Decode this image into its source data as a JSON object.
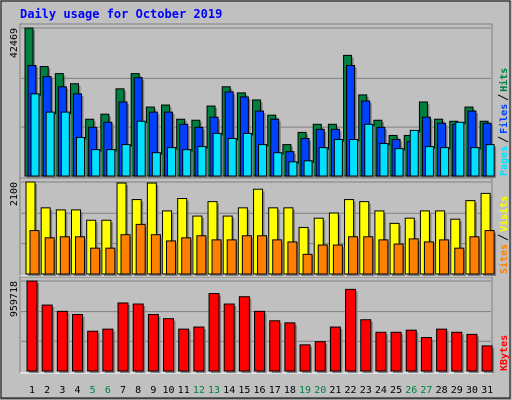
{
  "chart_data": [
    {
      "type": "bar",
      "title": "Daily usage for October 2019",
      "ylim": [
        0,
        42469
      ],
      "yticks": [
        42469
      ],
      "series": [
        {
          "name": "Hits",
          "color": "#008040",
          "values": [
            42469,
            31416,
            29380,
            26470,
            16290,
            17745,
            25017,
            29380,
            19781,
            20363,
            16290,
            16000,
            20072,
            25600,
            23854,
            21818,
            17454,
            9018,
            12509,
            14836,
            14836,
            34618,
            23272,
            16000,
            11636,
            11636,
            21236,
            16290,
            15709,
            19781,
            15709
          ]
        },
        {
          "name": "Files",
          "color": "#0040ff",
          "values": [
            31708,
            28509,
            25600,
            23563,
            13963,
            15418,
            21236,
            28218,
            18327,
            18327,
            14836,
            13963,
            16872,
            24145,
            22690,
            18618,
            16290,
            6982,
            10763,
            13382,
            13382,
            31708,
            21527,
            13963,
            10472,
            9890,
            16872,
            15127,
            14836,
            18618,
            15127
          ]
        },
        {
          "name": "Pages",
          "color": "#00e0ff",
          "values": [
            23563,
            18327,
            18327,
            11054,
            7563,
            7563,
            9018,
            15709,
            6691,
            8145,
            7563,
            8436,
            12218,
            10763,
            12218,
            9018,
            6691,
            4073,
            4364,
            8145,
            10472,
            10472,
            14836,
            9309,
            7854,
            13091,
            8436,
            8145,
            15418,
            8145,
            9018
          ]
        }
      ]
    },
    {
      "type": "bar",
      "ylim": [
        0,
        2100
      ],
      "yticks": [
        2100
      ],
      "series": [
        {
          "name": "Visits",
          "color": "#ffff00",
          "values": [
            2100,
            1510,
            1463,
            1463,
            1227,
            1227,
            2076,
            1699,
            2076,
            1440,
            1723,
            1322,
            1652,
            1322,
            1510,
            1935,
            1510,
            1510,
            1062,
            1274,
            1392,
            1699,
            1652,
            1440,
            1156,
            1274,
            1440,
            1440,
            1251,
            1675,
            1840
          ]
        },
        {
          "name": "Sites",
          "color": "#ff8000",
          "values": [
            991,
            826,
            850,
            850,
            590,
            590,
            897,
            1133,
            897,
            755,
            826,
            873,
            779,
            779,
            873,
            873,
            779,
            732,
            448,
            661,
            661,
            850,
            850,
            779,
            684,
            802,
            732,
            779,
            590,
            850,
            991
          ]
        }
      ]
    },
    {
      "type": "bar",
      "ylim": [
        0,
        959718
      ],
      "yticks": [
        959718
      ],
      "categories": [
        "1",
        "2",
        "3",
        "4",
        "5",
        "6",
        "7",
        "8",
        "9",
        "10",
        "11",
        "12",
        "13",
        "14",
        "15",
        "16",
        "17",
        "18",
        "19",
        "20",
        "21",
        "22",
        "23",
        "24",
        "25",
        "26",
        "27",
        "28",
        "29",
        "30",
        "31"
      ],
      "category_colors": [
        "#000000",
        "#000000",
        "#000000",
        "#000000",
        "#008040",
        "#008040",
        "#000000",
        "#000000",
        "#000000",
        "#000000",
        "#000000",
        "#008040",
        "#008040",
        "#000000",
        "#000000",
        "#000000",
        "#000000",
        "#000000",
        "#008040",
        "#008040",
        "#000000",
        "#000000",
        "#000000",
        "#000000",
        "#000000",
        "#008040",
        "#008040",
        "#000000",
        "#000000",
        "#000000",
        "#000000"
      ],
      "series": [
        {
          "name": "KBytes",
          "color": "#ff0000",
          "values": [
            959718,
            703080,
            636120,
            602640,
            424080,
            446400,
            725400,
            714240,
            602640,
            558000,
            446400,
            468720,
            825840,
            714240,
            792360,
            636120,
            535680,
            513360,
            279000,
            312480,
            468720,
            870480,
            546840,
            412920,
            412920,
            435240,
            357120,
            446400,
            412920,
            390600,
            267840
          ]
        }
      ]
    }
  ]
}
